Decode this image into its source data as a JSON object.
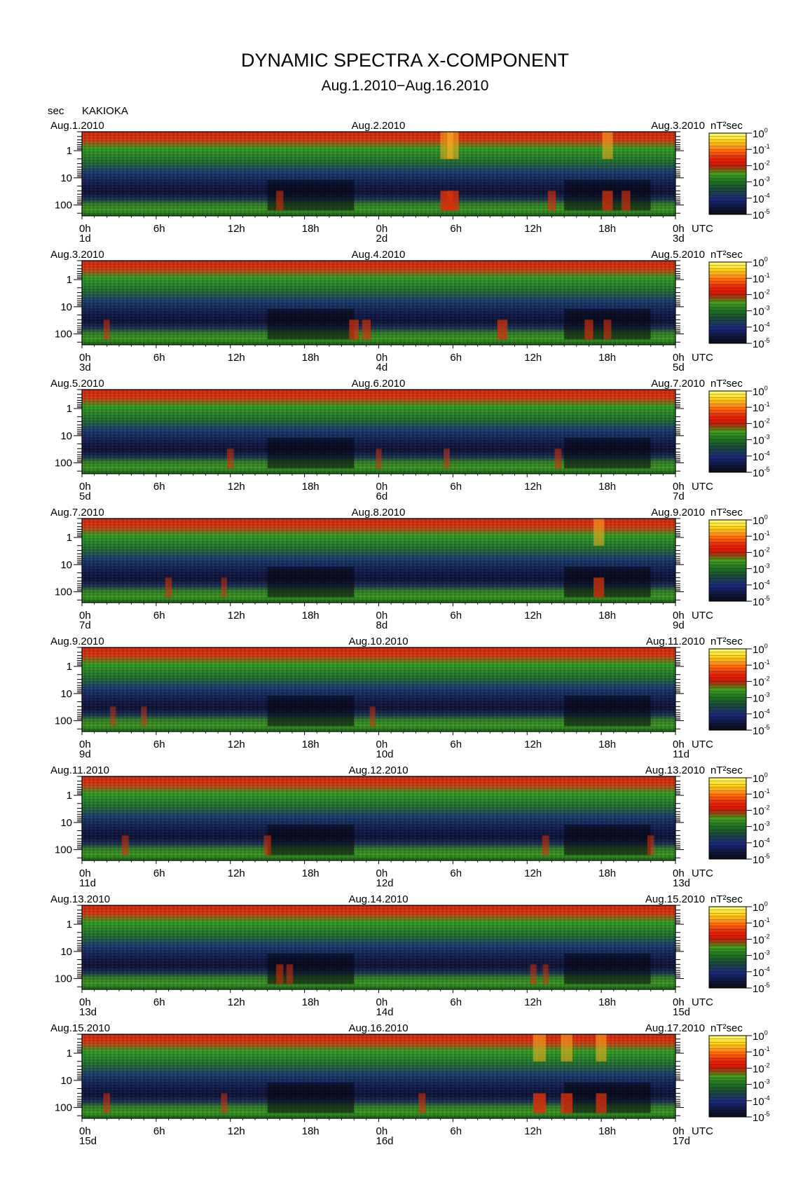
{
  "title": "DYNAMIC SPECTRA X-COMPONENT",
  "subtitle": "Aug.1.2010−Aug.16.2010",
  "y_unit_label": "sec",
  "station": "KAKIOKA",
  "colorbar_unit": "nT²sec",
  "x_unit": "UTC",
  "chart_data": {
    "type": "heatmap",
    "description_x": "time (hours, UTC), each panel spans 48 h",
    "description_y": "period (seconds), log scale, increasing downward",
    "ylim": [
      0.2,
      250
    ],
    "y_ticks": [
      "1",
      "10",
      "100"
    ],
    "x_ticks": [
      "0h",
      "6h",
      "12h",
      "18h",
      "0h",
      "6h",
      "12h",
      "18h",
      "0h"
    ],
    "colorbar": {
      "scale": "log",
      "range": [
        "1e-5",
        "1e0"
      ],
      "tick_labels": [
        "10^0",
        "10^-1",
        "10^-2",
        "10^-3",
        "10^-4",
        "10^-5"
      ],
      "colors": [
        "#0b0b14",
        "#101845",
        "#1c2a7a",
        "#1a4a3a",
        "#1f6e22",
        "#3ea020",
        "#c21a08",
        "#ee2a0a",
        "#ff7a10",
        "#ffd020",
        "#ffff60"
      ]
    },
    "panels": [
      {
        "date_left": "Aug.1.2010",
        "date_mid": "Aug.2.2010",
        "date_right": "Aug.3.2010",
        "day_left": "1d",
        "day_mid": "2d",
        "day_right": "3d",
        "events": [
          [
            16,
            0.45
          ],
          [
            29.5,
            1.0
          ],
          [
            30,
            0.9
          ],
          [
            38,
            0.55
          ],
          [
            42.5,
            0.8
          ],
          [
            44,
            0.6
          ]
        ]
      },
      {
        "date_left": "Aug.3.2010",
        "date_mid": "Aug.4.2010",
        "date_right": "Aug.5.2010",
        "day_left": "3d",
        "day_mid": "4d",
        "day_right": "5d",
        "events": [
          [
            2,
            0.35
          ],
          [
            22,
            0.7
          ],
          [
            23,
            0.6
          ],
          [
            34,
            0.75
          ],
          [
            41,
            0.6
          ],
          [
            42.5,
            0.5
          ]
        ]
      },
      {
        "date_left": "Aug.5.2010",
        "date_mid": "Aug.6.2010",
        "date_right": "Aug.7.2010",
        "day_left": "5d",
        "day_mid": "6d",
        "day_right": "7d",
        "events": [
          [
            12,
            0.4
          ],
          [
            29.5,
            0.35
          ],
          [
            38.5,
            0.4
          ],
          [
            24,
            0.3
          ]
        ]
      },
      {
        "date_left": "Aug.7.2010",
        "date_mid": "Aug.8.2010",
        "date_right": "Aug.9.2010",
        "day_left": "7d",
        "day_mid": "8d",
        "day_right": "9d",
        "events": [
          [
            7,
            0.4
          ],
          [
            11.5,
            0.3
          ],
          [
            41.8,
            0.8
          ]
        ]
      },
      {
        "date_left": "Aug.9.2010",
        "date_mid": "Aug.10.2010",
        "date_right": "Aug.11.2010",
        "day_left": "9d",
        "day_mid": "10d",
        "day_right": "11d",
        "events": [
          [
            2.5,
            0.3
          ],
          [
            5,
            0.3
          ],
          [
            23.5,
            0.3
          ]
        ]
      },
      {
        "date_left": "Aug.11.2010",
        "date_mid": "Aug.12.2010",
        "date_right": "Aug.13.2010",
        "day_left": "11d",
        "day_mid": "12d",
        "day_right": "13d",
        "events": [
          [
            3.5,
            0.4
          ],
          [
            15,
            0.45
          ],
          [
            37.5,
            0.4
          ],
          [
            46,
            0.4
          ]
        ]
      },
      {
        "date_left": "Aug.13.2010",
        "date_mid": "Aug.14.2010",
        "date_right": "Aug.15.2010",
        "day_left": "13d",
        "day_mid": "14d",
        "day_right": "15d",
        "events": [
          [
            16,
            0.45
          ],
          [
            16.8,
            0.4
          ],
          [
            36.5,
            0.35
          ],
          [
            37.5,
            0.3
          ]
        ]
      },
      {
        "date_left": "Aug.15.2010",
        "date_mid": "Aug.16.2010",
        "date_right": "Aug.17.2010",
        "day_left": "15d",
        "day_mid": "16d",
        "day_right": "17d",
        "events": [
          [
            2,
            0.4
          ],
          [
            11.5,
            0.35
          ],
          [
            27.5,
            0.45
          ],
          [
            37,
            1.0
          ],
          [
            39.2,
            0.9
          ],
          [
            42,
            0.8
          ]
        ]
      }
    ]
  }
}
